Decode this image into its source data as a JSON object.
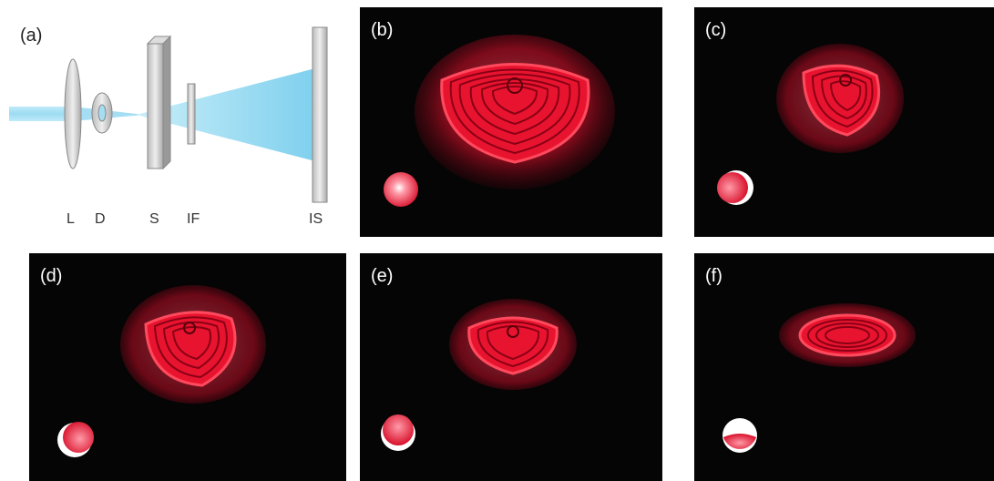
{
  "panels": {
    "a": "(a)",
    "b": "(b)",
    "c": "(c)",
    "d": "(d)",
    "e": "(e)",
    "f": "(f)"
  },
  "setup_labels": {
    "lens": "L",
    "diaphragm": "D",
    "sample": "S",
    "filter": "IF",
    "screen": "IS"
  },
  "colors": {
    "laser": "#ff2a4a",
    "beam": "#8fd8f0",
    "background": "#050505"
  }
}
